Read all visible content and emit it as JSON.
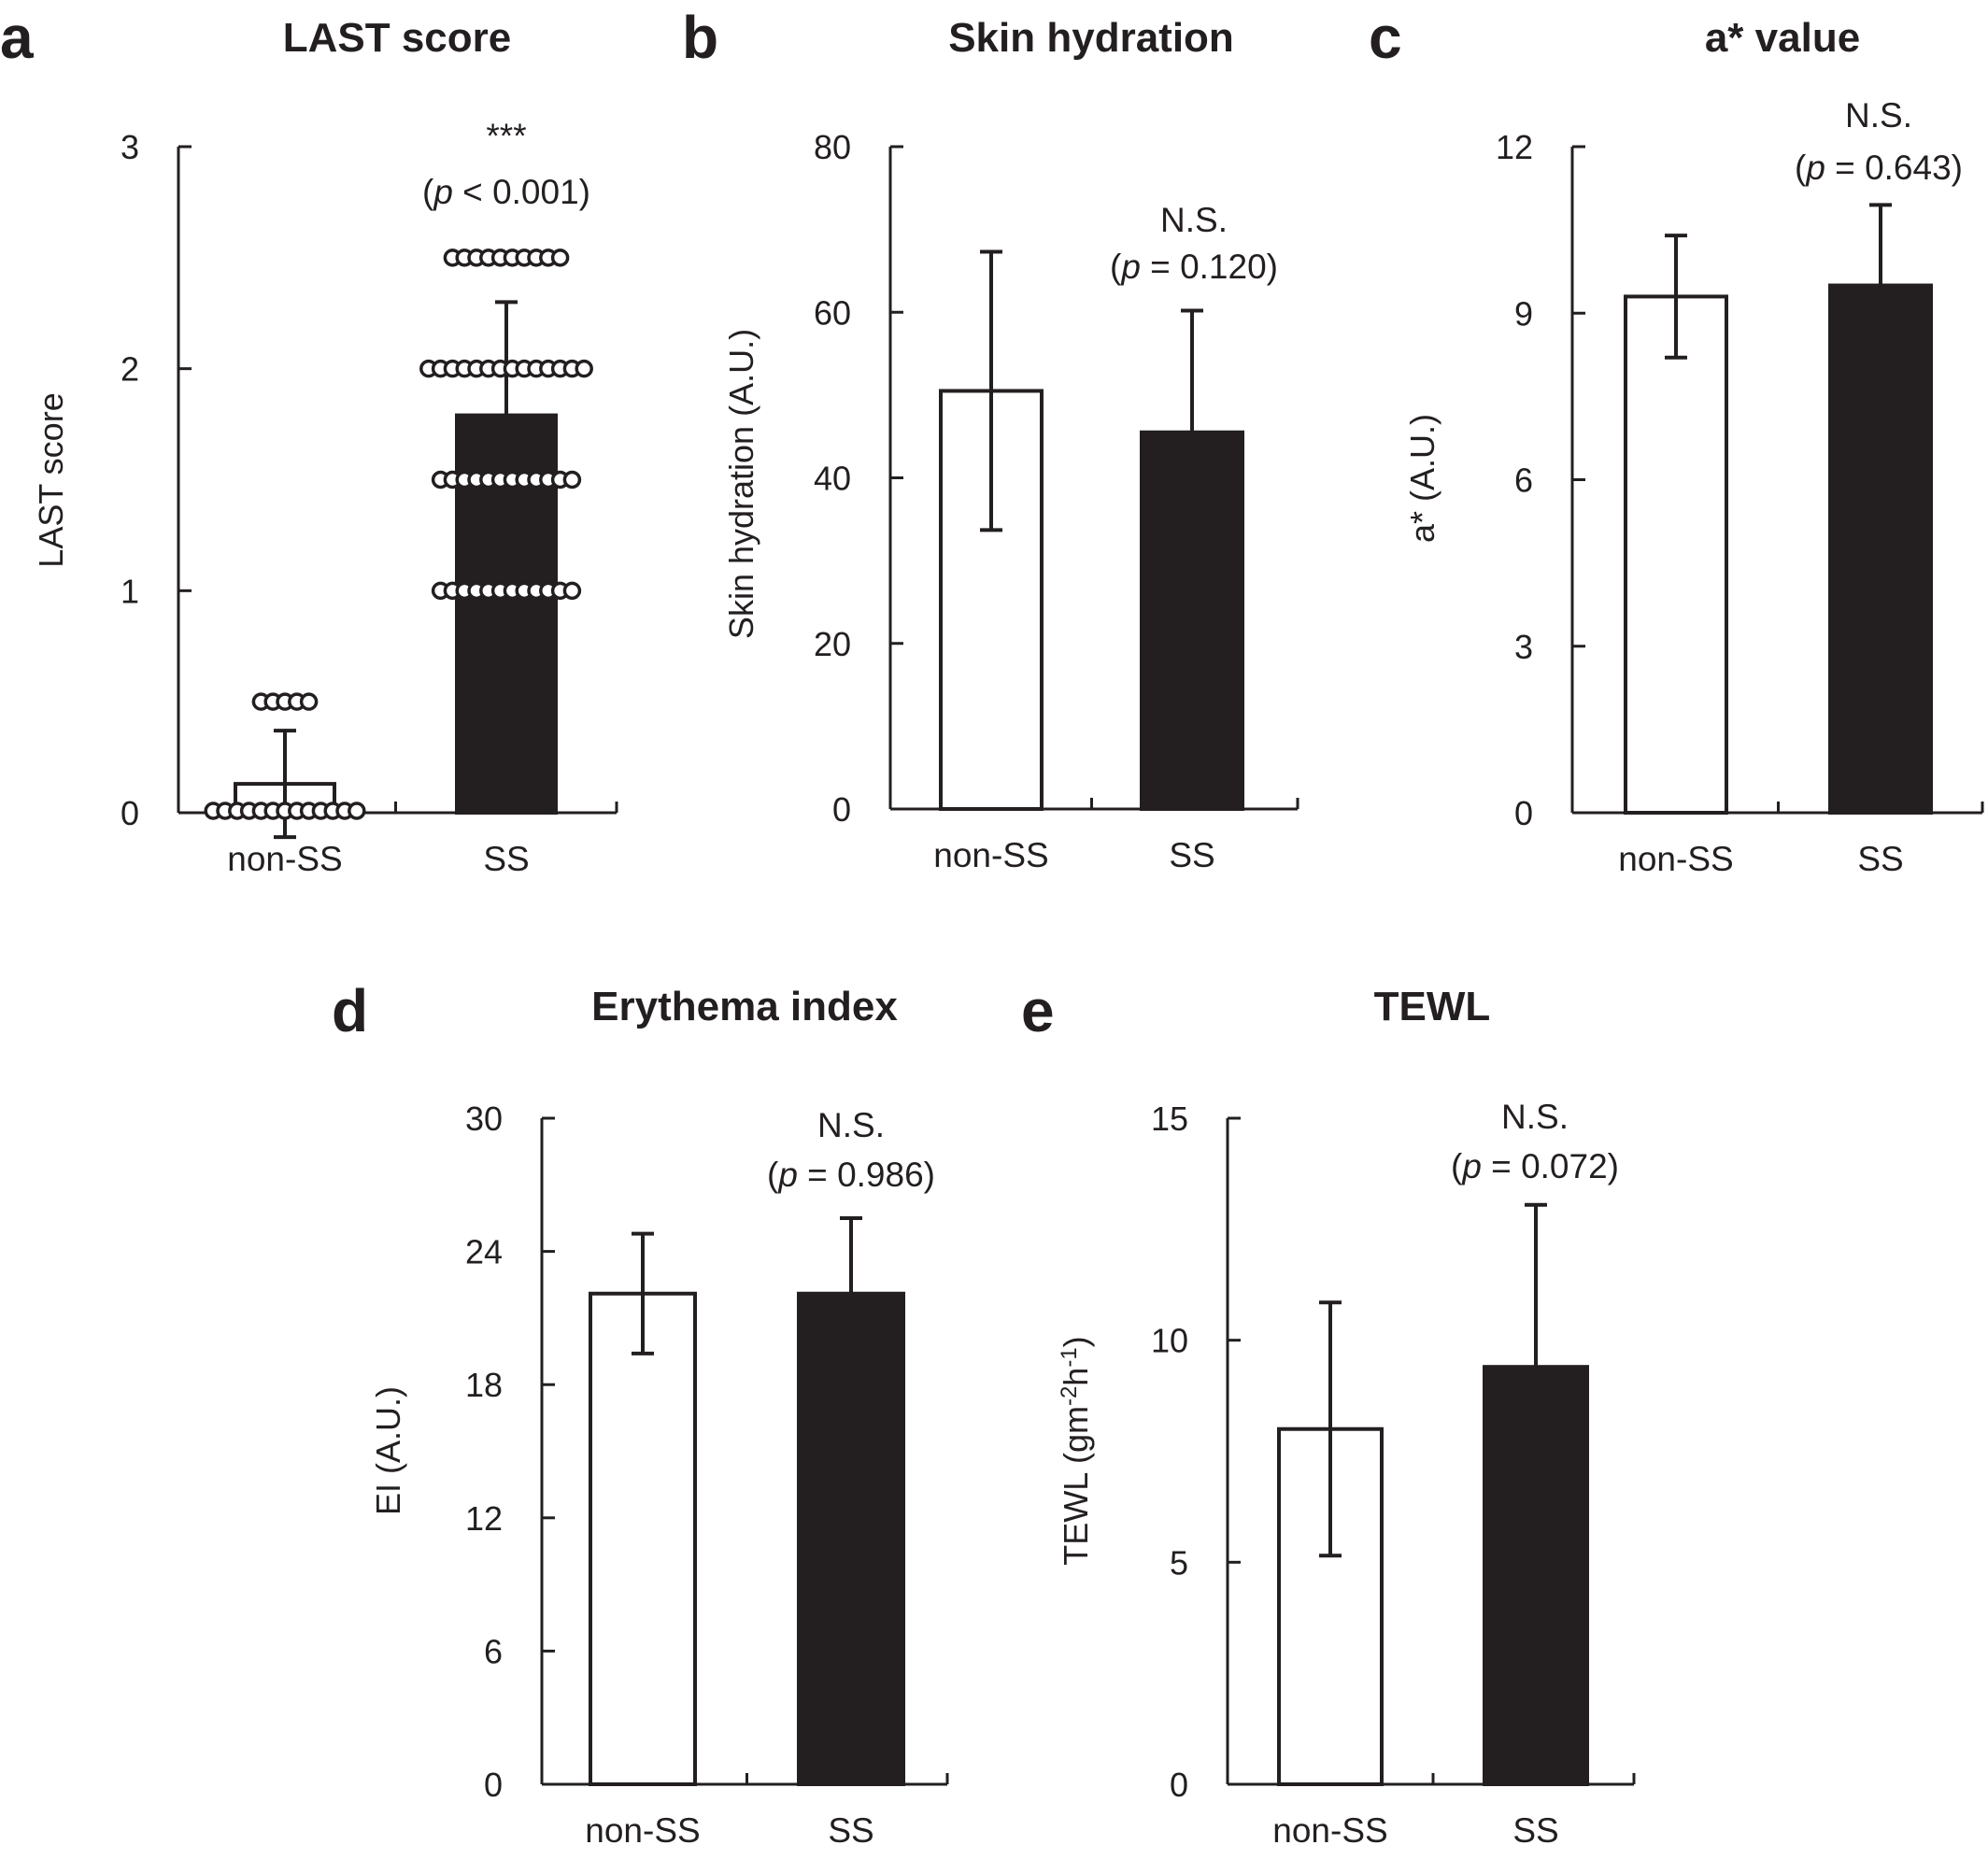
{
  "chart_data": [
    {
      "panel": "a",
      "type": "bar",
      "title": "LAST score",
      "ylabel": "LAST score",
      "xlabel": "",
      "categories": [
        "non-SS",
        "SS"
      ],
      "values": [
        0.13,
        1.79
      ],
      "errors": [
        0.24,
        0.51
      ],
      "ylim": [
        0,
        3
      ],
      "yticks": [
        0,
        1,
        2,
        3
      ],
      "bar_colors": [
        "#ffffff",
        "#231f20"
      ],
      "significance": "***",
      "p_label": "p",
      "p_text": " < 0.001)",
      "points": [
        {
          "category": "non-SS",
          "value": 0,
          "count": 13
        },
        {
          "category": "non-SS",
          "value": 0.5,
          "count": 5
        },
        {
          "category": "SS",
          "value": 1,
          "count": 12
        },
        {
          "category": "SS",
          "value": 1.5,
          "count": 12
        },
        {
          "category": "SS",
          "value": 2,
          "count": 14
        },
        {
          "category": "SS",
          "value": 2.5,
          "count": 10
        }
      ]
    },
    {
      "panel": "b",
      "type": "bar",
      "title": "Skin hydration",
      "ylabel": "Skin hydration (A.U.)",
      "xlabel": "",
      "categories": [
        "non-SS",
        "SS"
      ],
      "values": [
        50.5,
        45.5
      ],
      "errors": [
        16.8,
        14.7
      ],
      "ylim": [
        0,
        80
      ],
      "yticks": [
        0,
        20,
        40,
        60,
        80
      ],
      "bar_colors": [
        "#ffffff",
        "#231f20"
      ],
      "significance": "N.S.",
      "p_label": "p",
      "p_text": " = 0.120)"
    },
    {
      "panel": "c",
      "type": "bar",
      "title": "a* value",
      "ylabel": "a* (A.U.)",
      "xlabel": "",
      "categories": [
        "non-SS",
        "SS"
      ],
      "values": [
        9.3,
        9.5
      ],
      "errors": [
        1.1,
        1.45
      ],
      "ylim": [
        0,
        12
      ],
      "yticks": [
        0,
        3,
        6,
        9,
        12
      ],
      "bar_colors": [
        "#ffffff",
        "#231f20"
      ],
      "significance": "N.S.",
      "p_label": "p",
      "p_text": " = 0.643)"
    },
    {
      "panel": "d",
      "type": "bar",
      "title": "Erythema index",
      "ylabel": "EI (A.U.)",
      "xlabel": "",
      "categories": [
        "non-SS",
        "SS"
      ],
      "values": [
        22.1,
        22.1
      ],
      "errors": [
        2.7,
        3.4
      ],
      "ylim": [
        0,
        30
      ],
      "yticks": [
        0,
        6,
        12,
        18,
        24,
        30
      ],
      "bar_colors": [
        "#ffffff",
        "#231f20"
      ],
      "significance": "N.S.",
      "p_label": "p",
      "p_text": " = 0.986)"
    },
    {
      "panel": "e",
      "type": "bar",
      "title": "TEWL",
      "ylabel": "TEWL (gm",
      "ylabel_sup1": "-2",
      "ylabel_mid": "h",
      "ylabel_sup2": "-1",
      "ylabel_end": ")",
      "xlabel": "",
      "categories": [
        "non-SS",
        "SS"
      ],
      "values": [
        8.0,
        9.4
      ],
      "errors": [
        2.85,
        3.65
      ],
      "ylim": [
        0,
        15
      ],
      "yticks": [
        0,
        5,
        10,
        15
      ],
      "bar_colors": [
        "#ffffff",
        "#231f20"
      ],
      "significance": "N.S.",
      "p_label": "p",
      "p_text": " = 0.072)"
    }
  ]
}
